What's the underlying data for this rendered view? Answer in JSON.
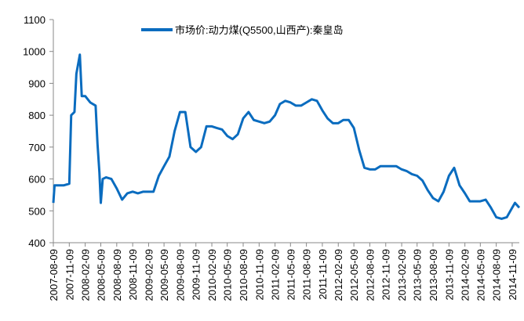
{
  "chart_data": {
    "type": "line",
    "series": [
      {
        "name": "市场价:动力煤(Q5500,山西产):秦皇岛",
        "color": "#0a6cbf",
        "x": [
          "2007-08-09",
          "2007-08-16",
          "2007-09-09",
          "2007-10-09",
          "2007-11-09",
          "2007-11-20",
          "2007-12-09",
          "2007-12-20",
          "2008-01-09",
          "2008-01-20",
          "2008-02-09",
          "2008-03-09",
          "2008-04-09",
          "2008-04-20",
          "2008-05-01",
          "2008-05-09",
          "2008-05-20",
          "2008-06-09",
          "2008-07-09",
          "2008-08-09",
          "2008-09-09",
          "2008-10-09",
          "2008-11-09",
          "2008-12-09",
          "2009-01-09",
          "2009-02-09",
          "2009-03-09",
          "2009-04-09",
          "2009-05-09",
          "2009-06-09",
          "2009-07-09",
          "2009-08-09",
          "2009-09-09",
          "2009-10-09",
          "2009-11-09",
          "2009-12-09",
          "2010-01-09",
          "2010-02-09",
          "2010-03-09",
          "2010-04-09",
          "2010-05-09",
          "2010-06-09",
          "2010-07-09",
          "2010-08-09",
          "2010-09-09",
          "2010-10-09",
          "2010-11-09",
          "2010-12-09",
          "2011-01-09",
          "2011-02-09",
          "2011-03-09",
          "2011-04-09",
          "2011-05-09",
          "2011-06-09",
          "2011-07-09",
          "2011-08-09",
          "2011-09-09",
          "2011-10-09",
          "2011-11-09",
          "2011-12-09",
          "2012-01-09",
          "2012-02-09",
          "2012-03-09",
          "2012-04-09",
          "2012-05-09",
          "2012-06-09",
          "2012-07-09",
          "2012-08-09",
          "2012-09-09",
          "2012-10-09",
          "2012-11-09",
          "2012-12-09",
          "2013-01-09",
          "2013-02-09",
          "2013-03-09",
          "2013-04-09",
          "2013-05-09",
          "2013-06-09",
          "2013-07-09",
          "2013-08-09",
          "2013-09-09",
          "2013-10-09",
          "2013-11-09",
          "2013-12-09",
          "2014-01-09",
          "2014-02-09",
          "2014-03-09",
          "2014-04-09",
          "2014-05-09",
          "2014-06-09",
          "2014-07-09",
          "2014-08-09",
          "2014-09-09",
          "2014-10-09",
          "2014-11-09",
          "2014-11-25",
          "2014-12-20"
        ],
        "values": [
          525,
          580,
          580,
          580,
          585,
          800,
          810,
          930,
          990,
          860,
          860,
          840,
          830,
          710,
          620,
          525,
          600,
          605,
          600,
          570,
          535,
          555,
          560,
          555,
          560,
          560,
          560,
          610,
          640,
          670,
          750,
          810,
          810,
          700,
          685,
          700,
          765,
          765,
          760,
          755,
          735,
          725,
          740,
          790,
          810,
          785,
          780,
          775,
          780,
          800,
          835,
          845,
          840,
          830,
          830,
          840,
          850,
          845,
          815,
          790,
          775,
          775,
          785,
          785,
          760,
          690,
          635,
          630,
          630,
          640,
          640,
          640,
          640,
          630,
          625,
          615,
          610,
          595,
          565,
          540,
          530,
          560,
          610,
          635,
          580,
          555,
          530,
          530,
          530,
          535,
          510,
          480,
          475,
          480,
          510,
          525,
          510
        ]
      }
    ],
    "xlim": [
      "2007-08-09",
      "2014-12-20"
    ],
    "xticks": [
      "2007-08-09",
      "2007-11-09",
      "2008-02-09",
      "2008-05-09",
      "2008-08-09",
      "2008-11-09",
      "2009-02-09",
      "2009-05-09",
      "2009-08-09",
      "2009-11-09",
      "2010-02-09",
      "2010-05-09",
      "2010-08-09",
      "2010-11-09",
      "2011-02-09",
      "2011-05-09",
      "2011-08-09",
      "2011-11-09",
      "2012-02-09",
      "2012-05-09",
      "2012-08-09",
      "2012-11-09",
      "2013-02-09",
      "2013-05-09",
      "2013-08-09",
      "2013-11-09",
      "2014-02-09",
      "2014-05-09",
      "2014-08-09",
      "2014-11-09"
    ],
    "ylim": [
      400,
      1100
    ],
    "yticks": [
      400,
      500,
      600,
      700,
      800,
      900,
      1000,
      1100
    ],
    "legend": "top"
  }
}
